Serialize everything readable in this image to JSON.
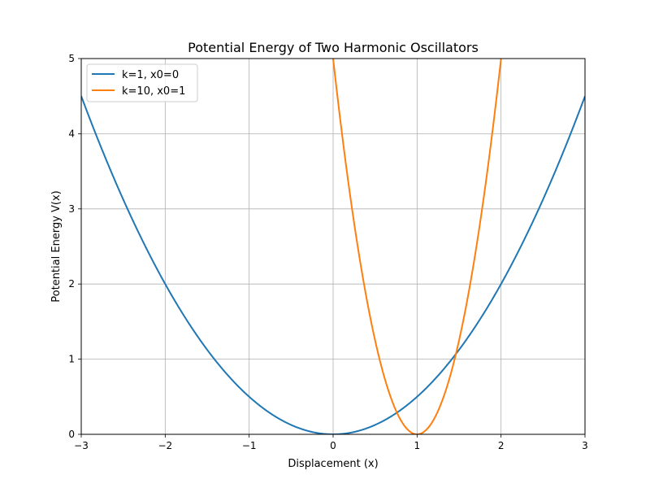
{
  "chart_data": {
    "type": "line",
    "title": "Potential Energy of Two Harmonic Oscillators",
    "xlabel": "Displacement (x)",
    "ylabel": "Potential Energy V(x)",
    "xlim": [
      -3,
      3
    ],
    "ylim": [
      0,
      5
    ],
    "x_ticks": [
      "−3",
      "−2",
      "−1",
      "0",
      "1",
      "2",
      "3"
    ],
    "y_ticks": [
      "0",
      "1",
      "2",
      "3",
      "4",
      "5"
    ],
    "grid": true,
    "legend_position": "top-left",
    "series": [
      {
        "name": "k=1, x0=0",
        "color": "#1f77b4",
        "function": "0.5*k*(x-x0)^2",
        "k": 1,
        "x0": 0,
        "points": [
          [
            -3,
            4.5
          ],
          [
            -2.5,
            3.125
          ],
          [
            -2,
            2
          ],
          [
            -1.5,
            1.125
          ],
          [
            -1,
            0.5
          ],
          [
            -0.5,
            0.125
          ],
          [
            0,
            0
          ],
          [
            0.5,
            0.125
          ],
          [
            1,
            0.5
          ],
          [
            1.5,
            1.125
          ],
          [
            2,
            2
          ],
          [
            2.5,
            3.125
          ],
          [
            3,
            4.5
          ]
        ]
      },
      {
        "name": "k=10, x0=1",
        "color": "#ff7f0e",
        "function": "0.5*k*(x-x0)^2",
        "k": 10,
        "x0": 1,
        "points": [
          [
            0,
            5
          ],
          [
            0.25,
            2.8125
          ],
          [
            0.5,
            1.25
          ],
          [
            0.75,
            0.3125
          ],
          [
            1,
            0
          ],
          [
            1.25,
            0.3125
          ],
          [
            1.5,
            1.25
          ],
          [
            1.75,
            2.8125
          ],
          [
            2,
            5
          ]
        ]
      }
    ]
  }
}
